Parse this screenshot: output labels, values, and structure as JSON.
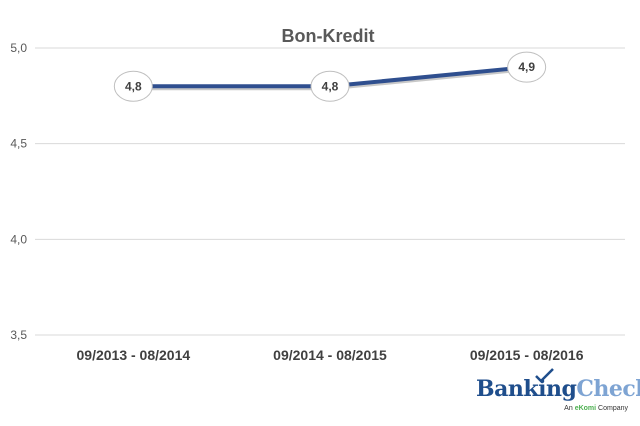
{
  "chart_data": {
    "type": "line",
    "title": "Bon-Kredit",
    "categories": [
      "09/2013 - 08/2014",
      "09/2014 - 08/2015",
      "09/2015 - 08/2016"
    ],
    "series": [
      {
        "values": [
          4.8,
          4.8,
          4.9
        ],
        "data_labels": [
          "4,8",
          "4,8",
          "4,9"
        ],
        "color": "#2f4f8f"
      }
    ],
    "ylim": [
      3.5,
      5.0
    ],
    "yticks": [
      "3,5",
      "4,0",
      "4,5",
      "5,0"
    ],
    "grid": true,
    "drop_lines": true
  },
  "logo": {
    "brand_part1": "Banking",
    "brand_part2": "Check",
    "tagline_pre": "An ",
    "tagline_brand": "eKomi",
    "tagline_post": " Company"
  }
}
